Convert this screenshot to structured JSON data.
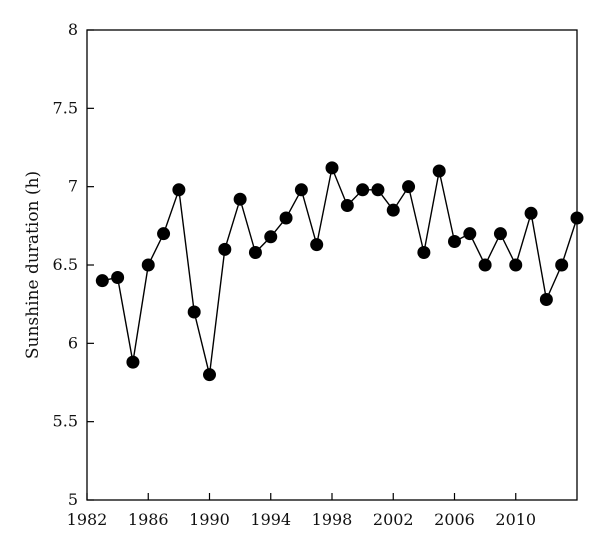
{
  "chart_data": {
    "type": "line",
    "title": "",
    "xlabel": "",
    "ylabel": "Sunshine duration (h)",
    "xlim": [
      1982,
      2014
    ],
    "ylim": [
      5,
      8
    ],
    "xticks": [
      1982,
      1986,
      1990,
      1994,
      1998,
      2002,
      2006,
      2010
    ],
    "yticks": [
      5,
      5.5,
      6,
      6.5,
      7,
      7.5,
      8
    ],
    "xtick_labels": [
      "1982",
      "1986",
      "1990",
      "1994",
      "1998",
      "2002",
      "2006",
      "2010"
    ],
    "ytick_labels": [
      "5",
      "5.5",
      "6",
      "6.5",
      "7",
      "7.5",
      "8"
    ],
    "grid": false,
    "marker": "filled-circle",
    "line_color": "#000000",
    "series": [
      {
        "x": [
          1983,
          1984,
          1985,
          1986,
          1987,
          1988,
          1989,
          1990,
          1991,
          1992,
          1993,
          1994,
          1995,
          1996,
          1997,
          1998,
          1999,
          2000,
          2001,
          2002,
          2003,
          2004,
          2005,
          2006,
          2007,
          2008,
          2009,
          2010,
          2011,
          2012,
          2013,
          2014
        ],
        "values": [
          6.4,
          6.42,
          5.88,
          6.5,
          6.7,
          6.98,
          6.2,
          5.8,
          6.6,
          6.92,
          6.58,
          6.68,
          6.8,
          6.98,
          6.63,
          7.12,
          6.88,
          6.98,
          6.98,
          6.85,
          7.0,
          6.58,
          7.1,
          6.65,
          6.7,
          6.5,
          6.7,
          6.5,
          6.83,
          6.28,
          6.5,
          6.8
        ]
      }
    ]
  }
}
